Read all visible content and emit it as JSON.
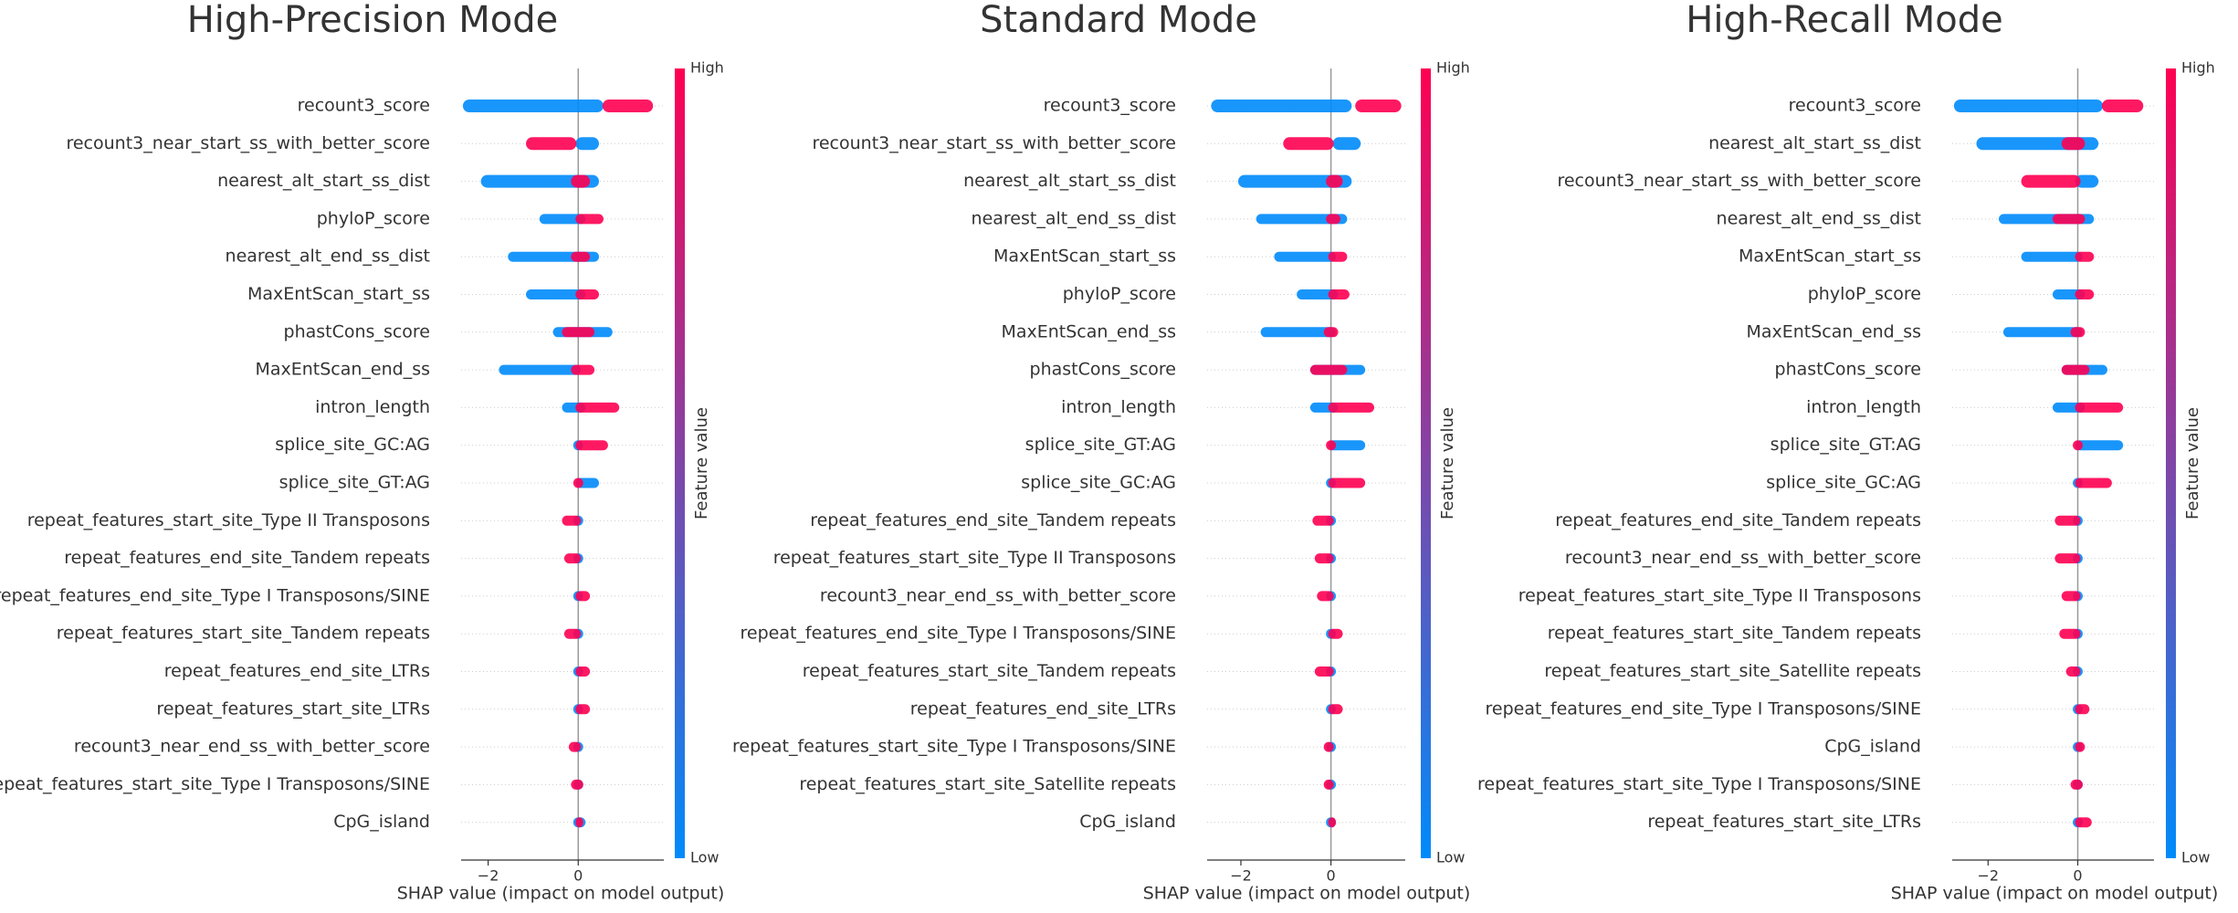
{
  "chart_data": [
    {
      "type": "beeswarm",
      "title": "High-Precision Mode",
      "xlabel": "SHAP value (impact on model output)",
      "categories": [
        "recount3_score",
        "recount3_near_start_ss_with_better_score",
        "nearest_alt_start_ss_dist",
        "phyloP_score",
        "nearest_alt_end_ss_dist",
        "MaxEntScan_start_ss",
        "phastCons_score",
        "MaxEntScan_end_ss",
        "intron_length",
        "splice_site_GC:AG",
        "splice_site_GT:AG",
        "repeat_features_start_site_Type II Transposons",
        "repeat_features_end_site_Tandem repeats",
        "repeat_features_end_site_Type I Transposons/SINE",
        "repeat_features_start_site_Tandem repeats",
        "repeat_features_end_site_LTRs",
        "repeat_features_start_site_LTRs",
        "recount3_near_end_ss_with_better_score",
        "repeat_features_start_site_Type I Transposons/SINE",
        "CpG_island"
      ],
      "low_range": {
        "color": "#008bfb",
        "min": [
          -2.5,
          0,
          -2.1,
          -0.8,
          -1.5,
          -1.1,
          -0.5,
          -1.7,
          -0.3,
          -0.05,
          0,
          -0.05,
          -0.05,
          -0.05,
          -0.05,
          -0.05,
          -0.05,
          -0.05,
          -0.05,
          -0.05
        ],
        "max": [
          0.5,
          0.4,
          0.4,
          0.1,
          0.4,
          0.1,
          0.7,
          0,
          0.1,
          0.05,
          0.4,
          0.05,
          0.05,
          0.05,
          0.05,
          0.05,
          0.05,
          0.05,
          0.05,
          0.1
        ]
      },
      "high_range": {
        "color": "#ff0052",
        "min": [
          0.6,
          -1.1,
          -0.1,
          0,
          -0.1,
          0,
          -0.3,
          -0.1,
          0,
          0,
          -0.05,
          -0.3,
          -0.25,
          0,
          -0.25,
          0,
          0,
          -0.15,
          -0.1,
          0
        ],
        "max": [
          1.6,
          -0.1,
          0.2,
          0.5,
          0.2,
          0.4,
          0.3,
          0.3,
          0.85,
          0.6,
          0.05,
          0,
          0,
          0.2,
          0,
          0.2,
          0.2,
          0,
          0.05,
          0.05
        ]
      },
      "xlim": [
        -2.6,
        1.9
      ],
      "xticks": [
        {
          "value": -2,
          "label": "−2"
        },
        0
      ],
      "colorbar": {
        "label": "Feature value",
        "high": "High",
        "low": "Low",
        "colors": [
          "#008bfb",
          "#ff0052"
        ]
      }
    },
    {
      "type": "beeswarm",
      "title": "Standard Mode",
      "xlabel": "SHAP value (impact on model output)",
      "categories": [
        "recount3_score",
        "recount3_near_start_ss_with_better_score",
        "nearest_alt_start_ss_dist",
        "nearest_alt_end_ss_dist",
        "MaxEntScan_start_ss",
        "phyloP_score",
        "MaxEntScan_end_ss",
        "phastCons_score",
        "intron_length",
        "splice_site_GT:AG",
        "splice_site_GC:AG",
        "repeat_features_end_site_Tandem repeats",
        "repeat_features_start_site_Type II Transposons",
        "recount3_near_end_ss_with_better_score",
        "repeat_features_end_site_Type I Transposons/SINE",
        "repeat_features_start_site_Tandem repeats",
        "repeat_features_end_site_LTRs",
        "repeat_features_start_site_Type I Transposons/SINE",
        "repeat_features_start_site_Satellite repeats",
        "CpG_island"
      ],
      "low_range": {
        "color": "#008bfb",
        "min": [
          -2.6,
          0.1,
          -2.0,
          -1.6,
          -1.2,
          -0.7,
          -1.5,
          -0.4,
          -0.4,
          0,
          -0.05,
          -0.05,
          -0.05,
          -0.05,
          -0.05,
          -0.05,
          -0.05,
          -0.05,
          -0.05,
          -0.05
        ],
        "max": [
          0.4,
          0.6,
          0.4,
          0.3,
          0.05,
          0.1,
          0.05,
          0.7,
          0.1,
          0.7,
          0.05,
          0.05,
          0.05,
          0.05,
          0.05,
          0.05,
          0.05,
          0.05,
          0.05,
          0.05
        ]
      },
      "high_range": {
        "color": "#ff0052",
        "min": [
          0.6,
          -1.0,
          -0.05,
          -0.05,
          0,
          0,
          -0.1,
          -0.4,
          0,
          -0.05,
          0,
          -0.35,
          -0.3,
          -0.25,
          0,
          -0.3,
          0,
          -0.1,
          -0.1,
          0
        ],
        "max": [
          1.5,
          0,
          0.2,
          0.15,
          0.3,
          0.35,
          0.1,
          0.3,
          0.9,
          0.05,
          0.7,
          0,
          0,
          0,
          0.2,
          0,
          0.2,
          0,
          0,
          0.05
        ]
      },
      "xlim": [
        -2.75,
        1.65
      ],
      "xticks": [
        {
          "value": -2,
          "label": "−2"
        },
        0
      ],
      "colorbar": {
        "label": "Feature value",
        "high": "High",
        "low": "Low",
        "colors": [
          "#008bfb",
          "#ff0052"
        ]
      }
    },
    {
      "type": "beeswarm",
      "title": "High-Recall Mode",
      "xlabel": "SHAP value (impact on model output)",
      "categories": [
        "recount3_score",
        "nearest_alt_start_ss_dist",
        "recount3_near_start_ss_with_better_score",
        "nearest_alt_end_ss_dist",
        "MaxEntScan_start_ss",
        "phyloP_score",
        "MaxEntScan_end_ss",
        "phastCons_score",
        "intron_length",
        "splice_site_GT:AG",
        "splice_site_GC:AG",
        "repeat_features_end_site_Tandem repeats",
        "recount3_near_end_ss_with_better_score",
        "repeat_features_start_site_Type II Transposons",
        "repeat_features_start_site_Tandem repeats",
        "repeat_features_start_site_Satellite repeats",
        "repeat_features_end_site_Type I Transposons/SINE",
        "CpG_island",
        "repeat_features_start_site_Type I Transposons/SINE",
        "repeat_features_start_site_LTRs"
      ],
      "low_range": {
        "color": "#008bfb",
        "min": [
          -2.7,
          -2.2,
          0,
          -1.7,
          -1.2,
          -0.5,
          -1.6,
          -0.3,
          -0.5,
          0,
          -0.05,
          -0.05,
          -0.05,
          -0.05,
          -0.05,
          -0.05,
          -0.05,
          -0.05,
          -0.05,
          -0.05
        ],
        "max": [
          0.5,
          0.4,
          0.4,
          0.3,
          0.05,
          0.1,
          0.05,
          0.6,
          0.1,
          0.95,
          0.05,
          0.05,
          0.05,
          0.05,
          0.05,
          0.05,
          0.05,
          0.05,
          0.05,
          0.05
        ]
      },
      "high_range": {
        "color": "#ff0052",
        "min": [
          0.6,
          -0.3,
          -1.2,
          -0.5,
          0,
          0,
          -0.1,
          -0.3,
          0,
          -0.05,
          0,
          -0.45,
          -0.45,
          -0.3,
          -0.35,
          -0.2,
          0,
          0,
          -0.1,
          0
        ],
        "max": [
          1.4,
          0.1,
          0,
          0.1,
          0.3,
          0.3,
          0.1,
          0.2,
          0.95,
          0.05,
          0.7,
          0,
          0,
          0,
          0,
          0,
          0.2,
          0.1,
          0.05,
          0.25
        ]
      },
      "xlim": [
        -2.8,
        1.7
      ],
      "xticks": [
        {
          "value": -2,
          "label": "−2"
        },
        0
      ],
      "colorbar": {
        "label": "Feature value",
        "high": "High",
        "low": "Low",
        "colors": [
          "#008bfb",
          "#ff0052"
        ]
      }
    }
  ]
}
